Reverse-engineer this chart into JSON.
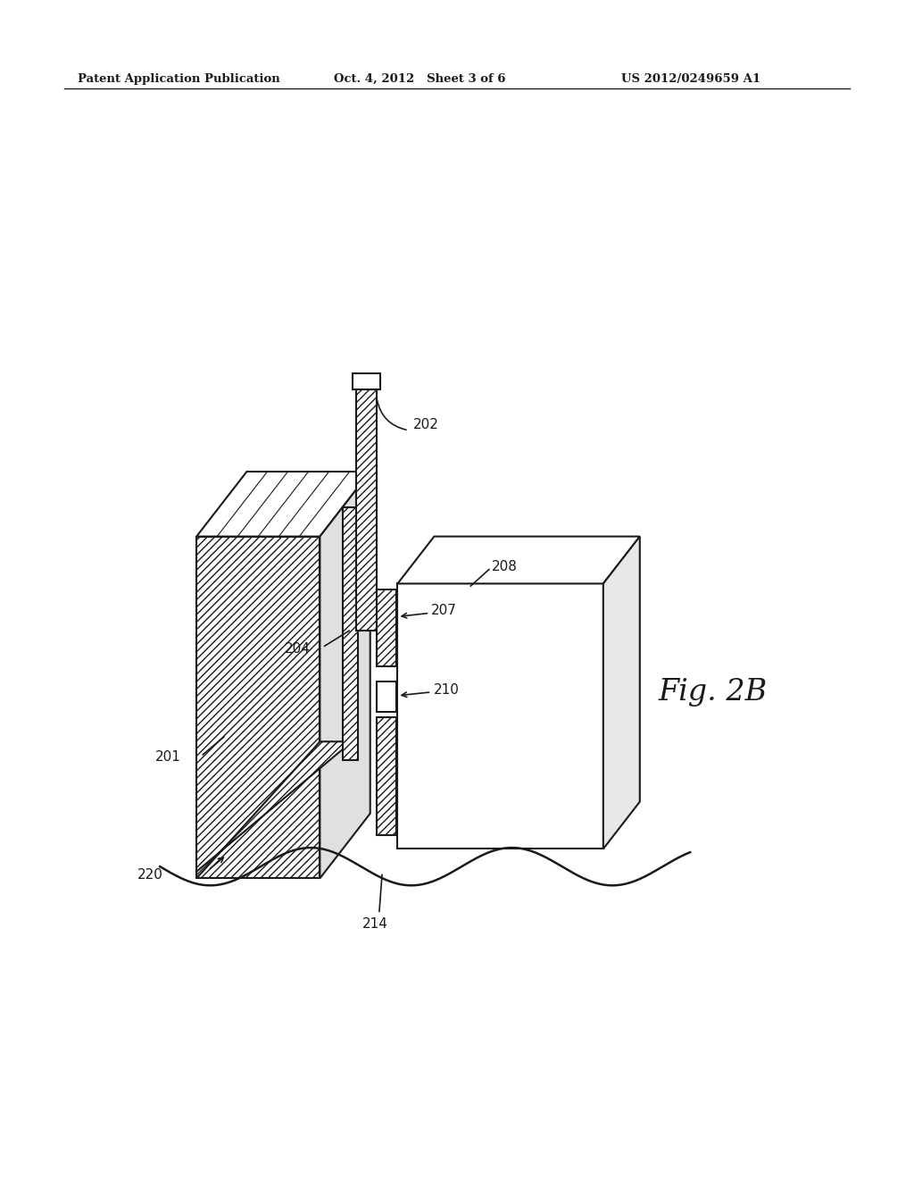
{
  "bg_color": "#ffffff",
  "line_color": "#1a1a1a",
  "header_left": "Patent Application Publication",
  "header_mid": "Oct. 4, 2012   Sheet 3 of 6",
  "header_right": "US 2012/0249659 A1",
  "fig_label": "Fig. 2B"
}
